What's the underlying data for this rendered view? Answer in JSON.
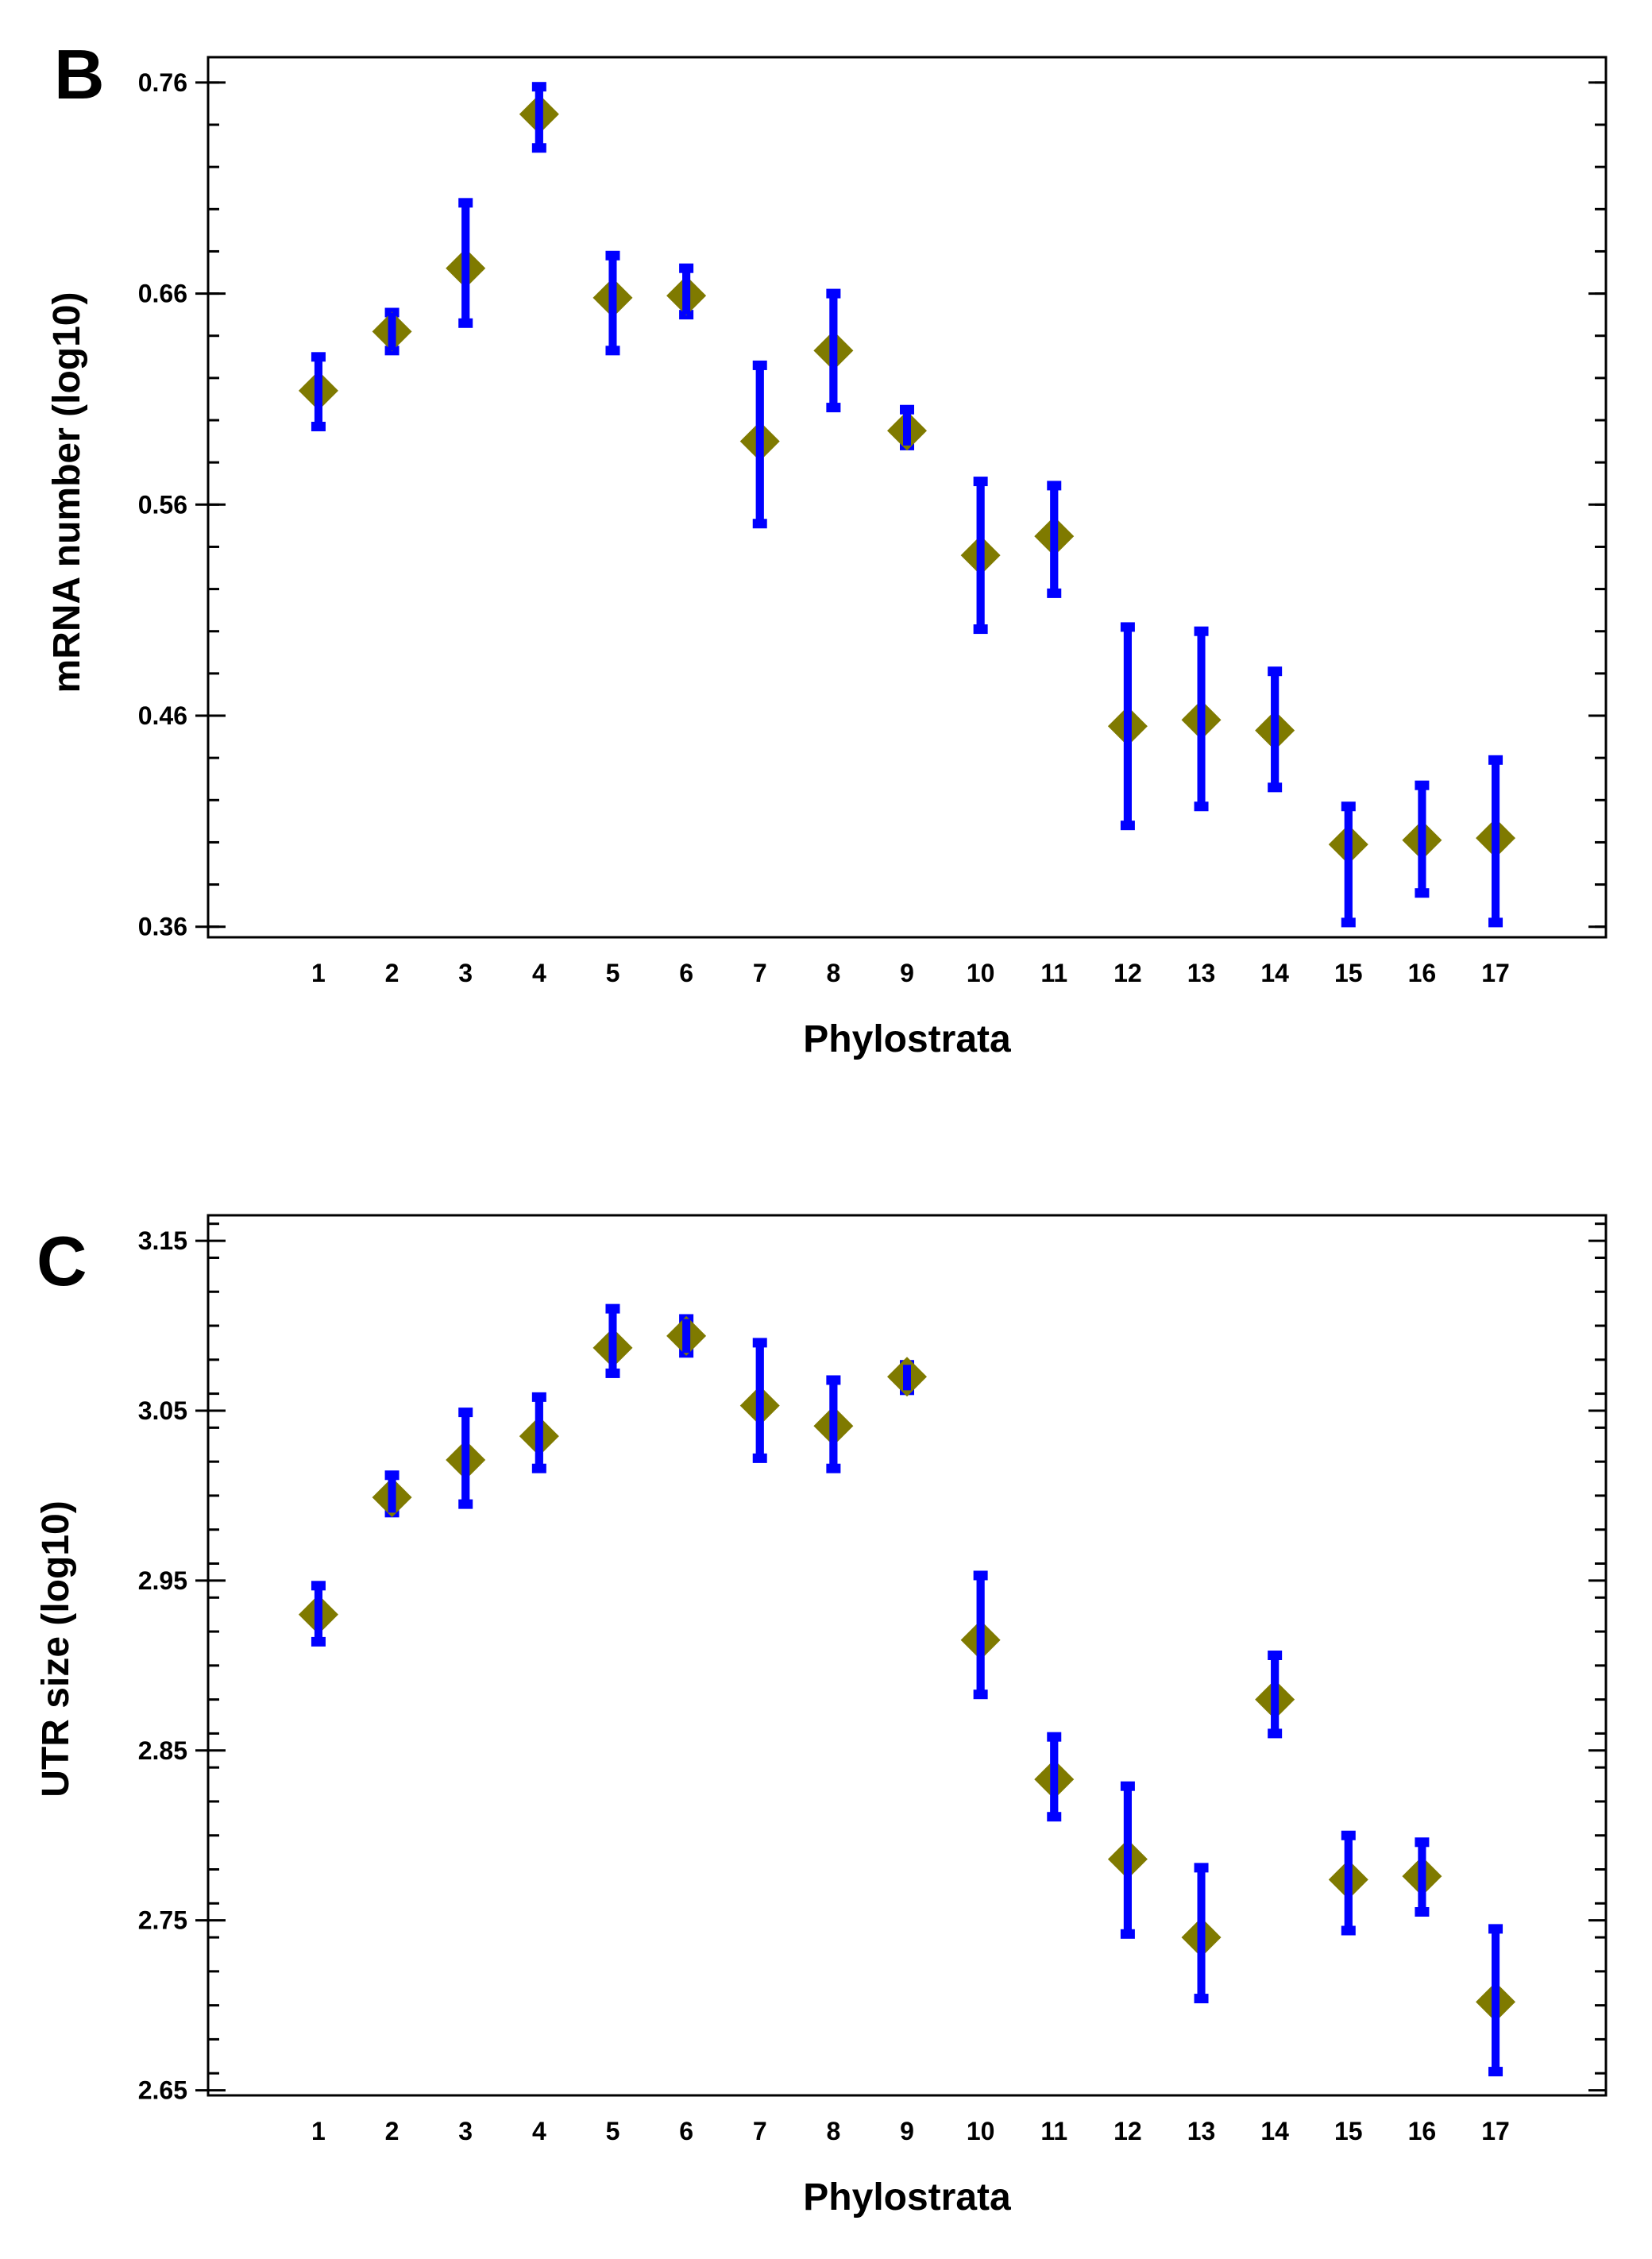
{
  "colors": {
    "marker": "#7f7a00",
    "error_bar": "#0000ff",
    "axis": "#000000",
    "background": "#ffffff"
  },
  "chart_data": [
    {
      "panel": "B",
      "type": "scatter",
      "marker": "diamond",
      "xlabel": "Phylostrata",
      "ylabel": "mRNA number (log10)",
      "ylim": [
        0.355,
        0.772
      ],
      "yticks": [
        0.36,
        0.46,
        0.56,
        0.66,
        0.76
      ],
      "ytick_labels": [
        "0.36",
        "0.46",
        "0.56",
        "0.66",
        "0.76"
      ],
      "y_minor_step": 0.02,
      "xlim": [
        -0.5,
        18.5
      ],
      "x": [
        1,
        2,
        3,
        4,
        5,
        6,
        7,
        8,
        9,
        10,
        11,
        12,
        13,
        14,
        15,
        16,
        17
      ],
      "x_labels": [
        "1",
        "2",
        "3",
        "4",
        "5",
        "6",
        "7",
        "8",
        "9",
        "10",
        "11",
        "12",
        "13",
        "14",
        "15",
        "16",
        "17"
      ],
      "y": [
        0.614,
        0.642,
        0.672,
        0.745,
        0.658,
        0.659,
        0.59,
        0.633,
        0.595,
        0.536,
        0.545,
        0.455,
        0.458,
        0.453,
        0.399,
        0.401,
        0.402
      ],
      "y_lower": [
        0.597,
        0.633,
        0.646,
        0.729,
        0.633,
        0.65,
        0.551,
        0.606,
        0.588,
        0.501,
        0.518,
        0.408,
        0.417,
        0.426,
        0.362,
        0.376,
        0.362
      ],
      "y_upper": [
        0.63,
        0.651,
        0.703,
        0.758,
        0.678,
        0.672,
        0.626,
        0.66,
        0.605,
        0.571,
        0.569,
        0.502,
        0.5,
        0.481,
        0.417,
        0.427,
        0.439
      ]
    },
    {
      "panel": "C",
      "type": "scatter",
      "marker": "diamond",
      "xlabel": "Phylostrata",
      "ylabel": "UTR size (log10)",
      "ylim": [
        2.647,
        3.165
      ],
      "yticks": [
        2.65,
        2.75,
        2.85,
        2.95,
        3.05,
        3.15
      ],
      "ytick_labels": [
        "2.65",
        "2.75",
        "2.85",
        "2.95",
        "3.05",
        "3.15"
      ],
      "y_minor_step": 0.02,
      "xlim": [
        -0.5,
        18.5
      ],
      "x": [
        1,
        2,
        3,
        4,
        5,
        6,
        7,
        8,
        9,
        10,
        11,
        12,
        13,
        14,
        15,
        16,
        17
      ],
      "x_labels": [
        "1",
        "2",
        "3",
        "4",
        "5",
        "6",
        "7",
        "8",
        "9",
        "10",
        "11",
        "12",
        "13",
        "14",
        "15",
        "16",
        "17"
      ],
      "y": [
        2.93,
        2.999,
        3.021,
        3.035,
        3.087,
        3.094,
        3.053,
        3.041,
        3.07,
        2.915,
        2.833,
        2.786,
        2.74,
        2.88,
        2.774,
        2.776,
        2.702
      ],
      "y_lower": [
        2.914,
        2.99,
        2.995,
        3.016,
        3.072,
        3.084,
        3.022,
        3.016,
        3.062,
        2.883,
        2.811,
        2.742,
        2.704,
        2.86,
        2.744,
        2.755,
        2.661
      ],
      "y_upper": [
        2.947,
        3.012,
        3.049,
        3.058,
        3.11,
        3.104,
        3.09,
        3.068,
        3.077,
        2.953,
        2.858,
        2.829,
        2.781,
        2.906,
        2.8,
        2.796,
        2.745
      ]
    }
  ]
}
